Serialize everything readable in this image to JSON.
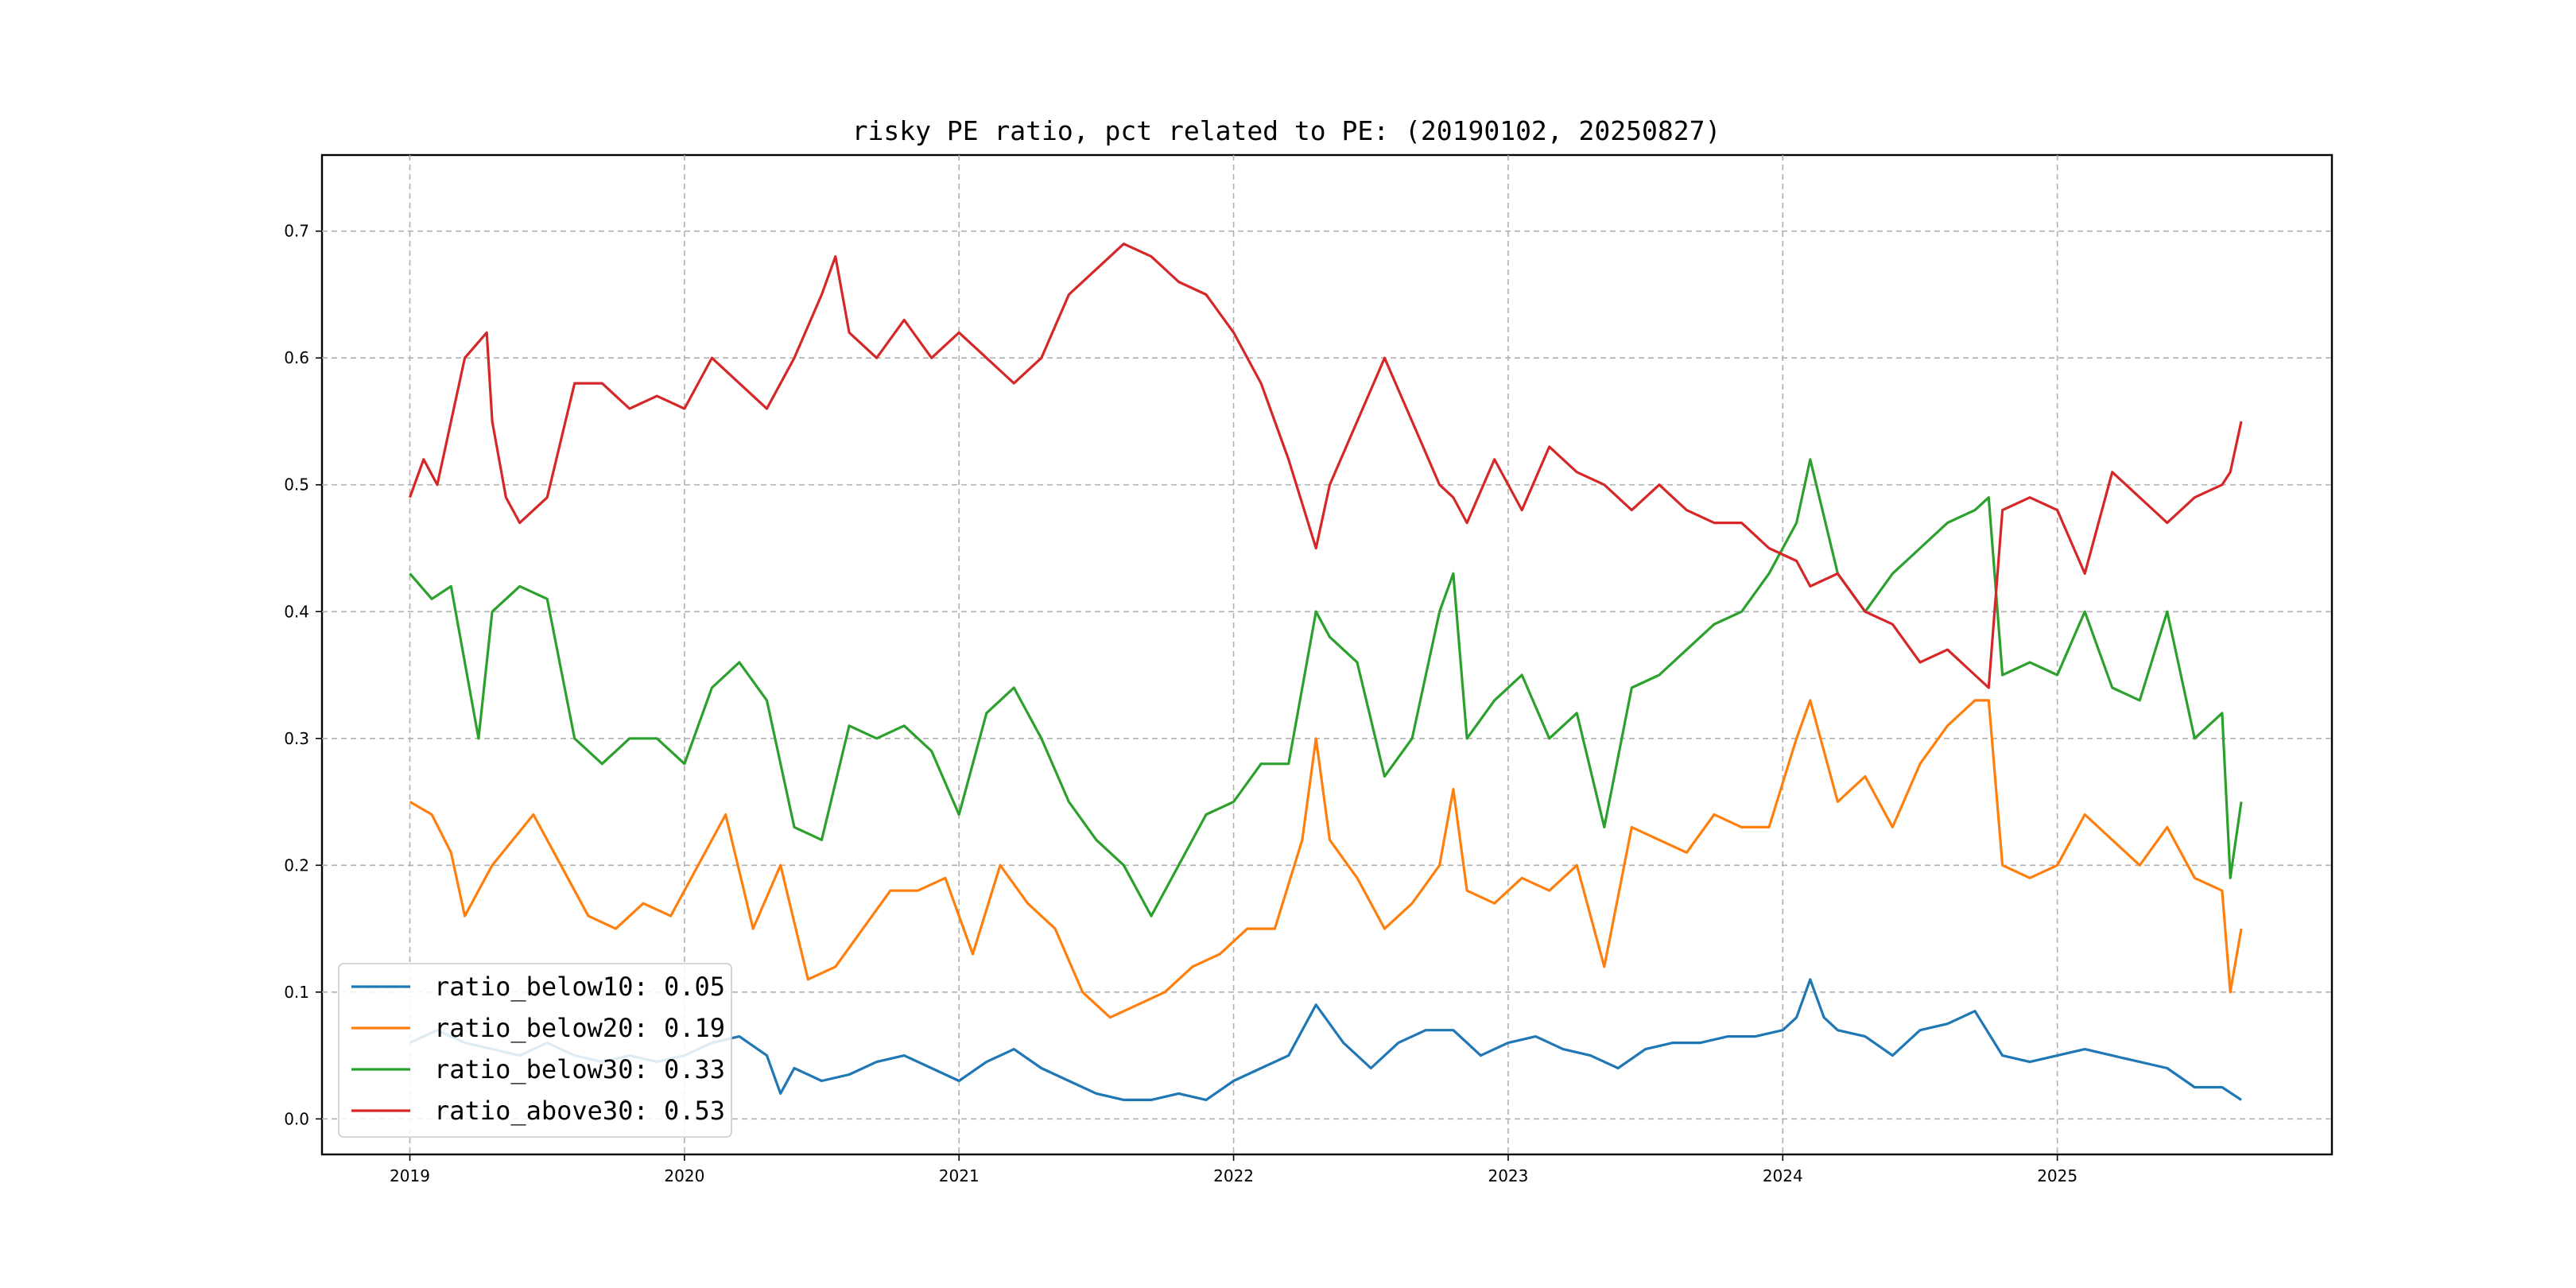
{
  "chart_data": {
    "type": "line",
    "title": "risky PE ratio, pct related to PE: (20190102, 20250827)",
    "xlabel": "",
    "ylabel": "",
    "xlim": [
      2018.68,
      2026.0
    ],
    "ylim": [
      -0.028,
      0.76
    ],
    "x_ticks": [
      2019,
      2020,
      2021,
      2022,
      2023,
      2024,
      2025
    ],
    "x_tick_labels": [
      "2019",
      "2020",
      "2021",
      "2022",
      "2023",
      "2024",
      "2025"
    ],
    "y_ticks": [
      0.0,
      0.1,
      0.2,
      0.3,
      0.4,
      0.5,
      0.6,
      0.7
    ],
    "y_tick_labels": [
      "0.0",
      "0.1",
      "0.2",
      "0.3",
      "0.4",
      "0.5",
      "0.6",
      "0.7"
    ],
    "grid": true,
    "legend_position": "lower-left",
    "series": [
      {
        "name": "ratio_below10",
        "legend_label": "ratio_below10: 0.05",
        "color": "#1f77b4",
        "x": [
          2019.0,
          2019.1,
          2019.2,
          2019.3,
          2019.4,
          2019.5,
          2019.6,
          2019.7,
          2019.8,
          2019.9,
          2020.0,
          2020.1,
          2020.2,
          2020.3,
          2020.35,
          2020.4,
          2020.5,
          2020.6,
          2020.7,
          2020.8,
          2020.9,
          2021.0,
          2021.1,
          2021.2,
          2021.3,
          2021.4,
          2021.5,
          2021.6,
          2021.7,
          2021.8,
          2021.9,
          2022.0,
          2022.1,
          2022.2,
          2022.3,
          2022.4,
          2022.5,
          2022.6,
          2022.7,
          2022.8,
          2022.9,
          2023.0,
          2023.1,
          2023.2,
          2023.3,
          2023.4,
          2023.5,
          2023.6,
          2023.7,
          2023.8,
          2023.9,
          2024.0,
          2024.05,
          2024.1,
          2024.15,
          2024.2,
          2024.3,
          2024.4,
          2024.5,
          2024.6,
          2024.7,
          2024.8,
          2024.9,
          2025.0,
          2025.1,
          2025.2,
          2025.3,
          2025.4,
          2025.5,
          2025.6,
          2025.67
        ],
        "y": [
          0.06,
          0.07,
          0.06,
          0.055,
          0.05,
          0.06,
          0.05,
          0.045,
          0.05,
          0.045,
          0.05,
          0.06,
          0.065,
          0.05,
          0.02,
          0.04,
          0.03,
          0.035,
          0.045,
          0.05,
          0.04,
          0.03,
          0.045,
          0.055,
          0.04,
          0.03,
          0.02,
          0.015,
          0.015,
          0.02,
          0.015,
          0.03,
          0.04,
          0.05,
          0.09,
          0.06,
          0.04,
          0.06,
          0.07,
          0.07,
          0.05,
          0.06,
          0.065,
          0.055,
          0.05,
          0.04,
          0.055,
          0.06,
          0.06,
          0.065,
          0.065,
          0.07,
          0.08,
          0.11,
          0.08,
          0.07,
          0.065,
          0.05,
          0.07,
          0.075,
          0.085,
          0.05,
          0.045,
          0.05,
          0.055,
          0.05,
          0.045,
          0.04,
          0.025,
          0.025,
          0.015
        ]
      },
      {
        "name": "ratio_below20",
        "legend_label": "ratio_below20: 0.19",
        "color": "#ff7f0e",
        "x": [
          2019.0,
          2019.08,
          2019.15,
          2019.2,
          2019.3,
          2019.45,
          2019.55,
          2019.65,
          2019.75,
          2019.85,
          2019.95,
          2020.05,
          2020.15,
          2020.25,
          2020.35,
          2020.45,
          2020.55,
          2020.65,
          2020.75,
          2020.85,
          2020.95,
          2021.05,
          2021.15,
          2021.25,
          2021.35,
          2021.45,
          2021.55,
          2021.65,
          2021.75,
          2021.85,
          2021.95,
          2022.05,
          2022.15,
          2022.25,
          2022.3,
          2022.35,
          2022.45,
          2022.55,
          2022.65,
          2022.75,
          2022.8,
          2022.85,
          2022.95,
          2023.05,
          2023.15,
          2023.25,
          2023.35,
          2023.45,
          2023.55,
          2023.65,
          2023.75,
          2023.85,
          2023.95,
          2024.05,
          2024.1,
          2024.2,
          2024.3,
          2024.4,
          2024.5,
          2024.6,
          2024.7,
          2024.75,
          2024.8,
          2024.9,
          2025.0,
          2025.1,
          2025.2,
          2025.3,
          2025.4,
          2025.5,
          2025.6,
          2025.63,
          2025.67
        ],
        "y": [
          0.25,
          0.24,
          0.21,
          0.16,
          0.2,
          0.24,
          0.2,
          0.16,
          0.15,
          0.17,
          0.16,
          0.2,
          0.24,
          0.15,
          0.2,
          0.11,
          0.12,
          0.15,
          0.18,
          0.18,
          0.19,
          0.13,
          0.2,
          0.17,
          0.15,
          0.1,
          0.08,
          0.09,
          0.1,
          0.12,
          0.13,
          0.15,
          0.15,
          0.22,
          0.3,
          0.22,
          0.19,
          0.15,
          0.17,
          0.2,
          0.26,
          0.18,
          0.17,
          0.19,
          0.18,
          0.2,
          0.12,
          0.23,
          0.22,
          0.21,
          0.24,
          0.23,
          0.23,
          0.3,
          0.33,
          0.25,
          0.27,
          0.23,
          0.28,
          0.31,
          0.33,
          0.33,
          0.2,
          0.19,
          0.2,
          0.24,
          0.22,
          0.2,
          0.23,
          0.19,
          0.18,
          0.1,
          0.15
        ]
      },
      {
        "name": "ratio_below30",
        "legend_label": "ratio_below30: 0.33",
        "color": "#2ca02c",
        "x": [
          2019.0,
          2019.08,
          2019.15,
          2019.25,
          2019.3,
          2019.4,
          2019.5,
          2019.6,
          2019.7,
          2019.8,
          2019.9,
          2020.0,
          2020.1,
          2020.2,
          2020.3,
          2020.4,
          2020.5,
          2020.6,
          2020.7,
          2020.8,
          2020.9,
          2021.0,
          2021.1,
          2021.2,
          2021.3,
          2021.4,
          2021.5,
          2021.6,
          2021.7,
          2021.8,
          2021.9,
          2022.0,
          2022.1,
          2022.2,
          2022.3,
          2022.35,
          2022.45,
          2022.55,
          2022.65,
          2022.75,
          2022.8,
          2022.85,
          2022.95,
          2023.05,
          2023.15,
          2023.25,
          2023.35,
          2023.45,
          2023.55,
          2023.65,
          2023.75,
          2023.85,
          2023.95,
          2024.05,
          2024.1,
          2024.2,
          2024.3,
          2024.4,
          2024.5,
          2024.6,
          2024.7,
          2024.75,
          2024.8,
          2024.9,
          2025.0,
          2025.1,
          2025.2,
          2025.3,
          2025.4,
          2025.5,
          2025.6,
          2025.63,
          2025.67
        ],
        "y": [
          0.43,
          0.41,
          0.42,
          0.3,
          0.4,
          0.42,
          0.41,
          0.3,
          0.28,
          0.3,
          0.3,
          0.28,
          0.34,
          0.36,
          0.33,
          0.23,
          0.22,
          0.31,
          0.3,
          0.31,
          0.29,
          0.24,
          0.32,
          0.34,
          0.3,
          0.25,
          0.22,
          0.2,
          0.16,
          0.2,
          0.24,
          0.25,
          0.28,
          0.28,
          0.4,
          0.38,
          0.36,
          0.27,
          0.3,
          0.4,
          0.43,
          0.3,
          0.33,
          0.35,
          0.3,
          0.32,
          0.23,
          0.34,
          0.35,
          0.37,
          0.39,
          0.4,
          0.43,
          0.47,
          0.52,
          0.43,
          0.4,
          0.43,
          0.45,
          0.47,
          0.48,
          0.49,
          0.35,
          0.36,
          0.35,
          0.4,
          0.34,
          0.33,
          0.4,
          0.3,
          0.32,
          0.19,
          0.25
        ]
      },
      {
        "name": "ratio_above30",
        "legend_label": "ratio_above30: 0.53",
        "color": "#d62728",
        "x": [
          2019.0,
          2019.05,
          2019.1,
          2019.15,
          2019.2,
          2019.28,
          2019.3,
          2019.35,
          2019.4,
          2019.5,
          2019.6,
          2019.7,
          2019.8,
          2019.9,
          2020.0,
          2020.1,
          2020.2,
          2020.3,
          2020.4,
          2020.5,
          2020.55,
          2020.6,
          2020.7,
          2020.8,
          2020.9,
          2021.0,
          2021.1,
          2021.2,
          2021.3,
          2021.4,
          2021.5,
          2021.6,
          2021.7,
          2021.8,
          2021.9,
          2022.0,
          2022.1,
          2022.2,
          2022.3,
          2022.35,
          2022.45,
          2022.55,
          2022.65,
          2022.75,
          2022.8,
          2022.85,
          2022.95,
          2023.05,
          2023.15,
          2023.25,
          2023.35,
          2023.45,
          2023.55,
          2023.65,
          2023.75,
          2023.85,
          2023.95,
          2024.05,
          2024.1,
          2024.2,
          2024.3,
          2024.4,
          2024.5,
          2024.6,
          2024.7,
          2024.75,
          2024.8,
          2024.9,
          2025.0,
          2025.1,
          2025.2,
          2025.3,
          2025.4,
          2025.5,
          2025.6,
          2025.63,
          2025.67
        ],
        "y": [
          0.49,
          0.52,
          0.5,
          0.55,
          0.6,
          0.62,
          0.55,
          0.49,
          0.47,
          0.49,
          0.58,
          0.58,
          0.56,
          0.57,
          0.56,
          0.6,
          0.58,
          0.56,
          0.6,
          0.65,
          0.68,
          0.62,
          0.6,
          0.63,
          0.6,
          0.62,
          0.6,
          0.58,
          0.6,
          0.65,
          0.67,
          0.69,
          0.68,
          0.66,
          0.65,
          0.62,
          0.58,
          0.52,
          0.45,
          0.5,
          0.55,
          0.6,
          0.55,
          0.5,
          0.49,
          0.47,
          0.52,
          0.48,
          0.53,
          0.51,
          0.5,
          0.48,
          0.5,
          0.48,
          0.47,
          0.47,
          0.45,
          0.44,
          0.42,
          0.43,
          0.4,
          0.39,
          0.36,
          0.37,
          0.35,
          0.34,
          0.48,
          0.49,
          0.48,
          0.43,
          0.51,
          0.49,
          0.47,
          0.49,
          0.5,
          0.51,
          0.55
        ]
      }
    ]
  }
}
